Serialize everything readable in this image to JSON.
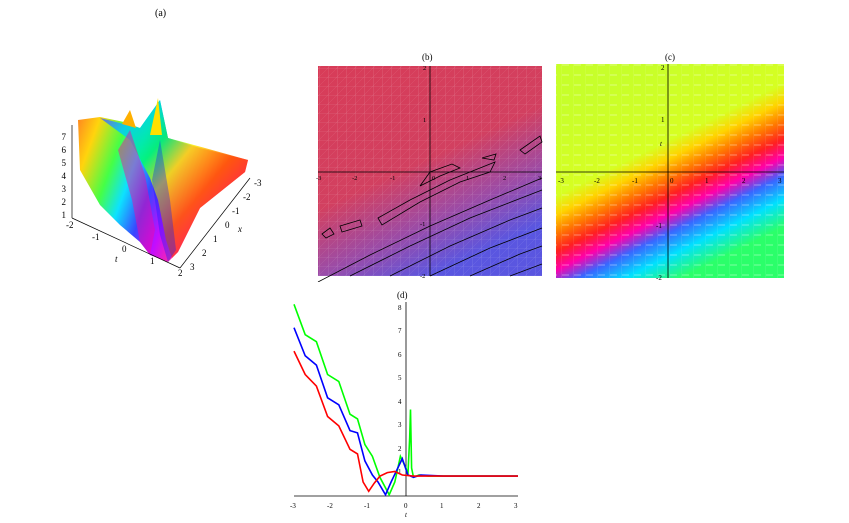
{
  "figure": {
    "panel_a": {
      "label": "(a)",
      "z_ticks": [
        "1",
        "2",
        "3",
        "4",
        "5",
        "6",
        "7"
      ],
      "t_ticks": [
        "-2",
        "-1",
        "0",
        "1",
        "2"
      ],
      "x_ticks": [
        "3",
        "2",
        "1",
        "0",
        "-1",
        "-2",
        "-3"
      ],
      "t_label": "t",
      "x_label": "x"
    },
    "panel_b": {
      "label": "(b)",
      "x_ticks": [
        "-3",
        "-2",
        "-1",
        "0",
        "1",
        "2",
        "3"
      ],
      "y_ticks": [
        "2",
        "1",
        "-1",
        "-2"
      ],
      "colors": {
        "top": "#d83c58",
        "bottom": "#5a56e0",
        "lines": "#000000"
      }
    },
    "panel_c": {
      "label": "(c)",
      "x_ticks": [
        "-3",
        "-2",
        "-1",
        "0",
        "1",
        "2",
        "3"
      ],
      "y_ticks": [
        "2",
        "1",
        "-1",
        "-2"
      ],
      "t_label": "t",
      "colors": [
        "#c7ff2a",
        "#ffd400",
        "#ff7a00",
        "#ff2020",
        "#ff00aa",
        "#3a66ff",
        "#00e0ff",
        "#2bff6a"
      ]
    },
    "panel_d": {
      "label": "(d)",
      "y_ticks": [
        "1",
        "2",
        "3",
        "4",
        "5",
        "6",
        "7",
        "8"
      ],
      "x_ticks": [
        "-3",
        "-2",
        "-1",
        "0",
        "1",
        "2",
        "3"
      ],
      "x_label": "t"
    }
  },
  "chart_data": [
    {
      "type": "line",
      "panel": "(d)",
      "xlim": [
        -3,
        3
      ],
      "ylim": [
        0,
        8.3
      ],
      "x_axis_at_y": 0,
      "series": [
        {
          "color": "#00ff00",
          "points": [
            [
              -3,
              8.2
            ],
            [
              -2.7,
              6.9
            ],
            [
              -2.4,
              6.6
            ],
            [
              -2.1,
              5.2
            ],
            [
              -1.8,
              4.9
            ],
            [
              -1.5,
              3.5
            ],
            [
              -1.3,
              3.3
            ],
            [
              -1.1,
              2.2
            ],
            [
              -0.9,
              1.7
            ],
            [
              -0.7,
              0.8
            ],
            [
              -0.45,
              0.05
            ],
            [
              -0.3,
              0.6
            ],
            [
              -0.15,
              1.7
            ],
            [
              0.0,
              1.2
            ],
            [
              0.05,
              0.9
            ],
            [
              0.1,
              2.5
            ],
            [
              0.12,
              3.7
            ],
            [
              0.15,
              1.2
            ],
            [
              0.2,
              0.8
            ],
            [
              0.35,
              0.9
            ],
            [
              0.6,
              0.85
            ],
            [
              1,
              0.85
            ],
            [
              3,
              0.85
            ]
          ]
        },
        {
          "color": "#0000ff",
          "points": [
            [
              -3,
              7.2
            ],
            [
              -2.7,
              6.0
            ],
            [
              -2.4,
              5.6
            ],
            [
              -2.1,
              4.2
            ],
            [
              -1.8,
              3.9
            ],
            [
              -1.5,
              2.8
            ],
            [
              -1.3,
              2.7
            ],
            [
              -1.1,
              1.5
            ],
            [
              -0.9,
              0.9
            ],
            [
              -0.75,
              0.6
            ],
            [
              -0.55,
              0.05
            ],
            [
              -0.4,
              0.6
            ],
            [
              -0.25,
              1.1
            ],
            [
              -0.1,
              1.6
            ],
            [
              0.05,
              0.9
            ],
            [
              0.2,
              0.8
            ],
            [
              0.4,
              0.9
            ],
            [
              1,
              0.85
            ],
            [
              3,
              0.85
            ]
          ]
        },
        {
          "color": "#ff0000",
          "points": [
            [
              -3,
              6.2
            ],
            [
              -2.7,
              5.2
            ],
            [
              -2.4,
              4.7
            ],
            [
              -2.1,
              3.4
            ],
            [
              -1.8,
              3.0
            ],
            [
              -1.5,
              2.0
            ],
            [
              -1.3,
              1.8
            ],
            [
              -1.15,
              0.6
            ],
            [
              -1.0,
              0.2
            ],
            [
              -0.85,
              0.55
            ],
            [
              -0.7,
              0.85
            ],
            [
              -0.5,
              1.0
            ],
            [
              -0.3,
              1.05
            ],
            [
              -0.1,
              0.9
            ],
            [
              0.2,
              0.85
            ],
            [
              0.5,
              0.85
            ],
            [
              1,
              0.85
            ],
            [
              3,
              0.85
            ]
          ]
        }
      ]
    }
  ]
}
